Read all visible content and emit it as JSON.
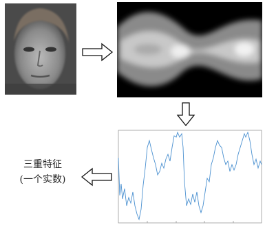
{
  "label": {
    "line1": "三重特征",
    "line2": "(一个实数)"
  }
}
